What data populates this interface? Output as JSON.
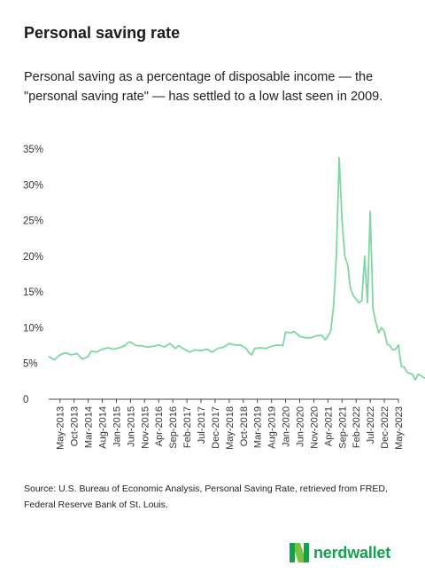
{
  "header": {
    "title": "Personal saving rate",
    "subtitle": "Personal saving as a percentage of disposable income — the \"personal saving rate\" — has settled to a low last seen in 2009."
  },
  "footer": {
    "source": "Source: U.S. Bureau of Economic Analysis, Personal Saving Rate, retrieved from FRED, Federal Reserve Bank of St. Louis.",
    "brand": "nerdwallet",
    "brand_color": "#14a14d"
  },
  "chart_data": {
    "type": "line",
    "title": "",
    "xlabel": "",
    "ylabel": "",
    "ylim": [
      0,
      35
    ],
    "y_ticks": [
      0,
      5,
      10,
      15,
      20,
      25,
      30,
      35
    ],
    "y_tick_labels": [
      "0",
      "5%",
      "10%",
      "15%",
      "20%",
      "25%",
      "30%",
      "35%"
    ],
    "x_tick_labels": [
      "May-2013",
      "Oct-2013",
      "Mar-2014",
      "Aug-2014",
      "Jan-2015",
      "Jun-2015",
      "Nov-2015",
      "Apr-2016",
      "Sep-2016",
      "Feb-2017",
      "Jul-2017",
      "Dec-2017",
      "May-2018",
      "Oct-2018",
      "Mar-2019",
      "Aug-2019",
      "Jan-2020",
      "Jun-2020",
      "Nov-2020",
      "Apr-2021",
      "Sep-2021",
      "Feb-2022",
      "Jul-2022",
      "Dec-2022",
      "May-2023"
    ],
    "start": "Jan-2013",
    "end": "May-2023",
    "line_color": "#7fd6a3",
    "grid": false,
    "legend": "none",
    "series": [
      {
        "values": [
          [
            0,
            6.0
          ],
          [
            2,
            5.5
          ],
          [
            4,
            6.2
          ],
          [
            6,
            6.5
          ],
          [
            8,
            6.2
          ],
          [
            10,
            6.4
          ],
          [
            12,
            5.6
          ],
          [
            14,
            6.0
          ],
          [
            15,
            6.7
          ],
          [
            17,
            6.6
          ],
          [
            19,
            7.0
          ],
          [
            21,
            7.2
          ],
          [
            23,
            7.0
          ],
          [
            25,
            7.2
          ],
          [
            27,
            7.5
          ],
          [
            28,
            7.9
          ],
          [
            29,
            8.0
          ],
          [
            31,
            7.5
          ],
          [
            33,
            7.5
          ],
          [
            35,
            7.3
          ],
          [
            37,
            7.4
          ],
          [
            39,
            7.6
          ],
          [
            41,
            7.3
          ],
          [
            43,
            7.8
          ],
          [
            45,
            7.1
          ],
          [
            46,
            7.5
          ],
          [
            48,
            7.0
          ],
          [
            50,
            6.6
          ],
          [
            52,
            6.9
          ],
          [
            54,
            6.8
          ],
          [
            56,
            7.0
          ],
          [
            58,
            6.6
          ],
          [
            60,
            7.1
          ],
          [
            62,
            7.3
          ],
          [
            64,
            7.8
          ],
          [
            66,
            7.6
          ],
          [
            68,
            7.6
          ],
          [
            70,
            7.1
          ],
          [
            71,
            6.5
          ],
          [
            72,
            6.2
          ],
          [
            73,
            7.1
          ],
          [
            75,
            7.2
          ],
          [
            77,
            7.1
          ],
          [
            79,
            7.4
          ],
          [
            81,
            7.6
          ],
          [
            83,
            7.5
          ],
          [
            84,
            9.4
          ],
          [
            86,
            9.3
          ],
          [
            87,
            9.5
          ],
          [
            89,
            8.8
          ],
          [
            91,
            8.6
          ],
          [
            93,
            8.6
          ],
          [
            95,
            8.9
          ],
          [
            97,
            8.9
          ],
          [
            98,
            8.3
          ],
          [
            99,
            8.8
          ],
          [
            100,
            9.5
          ],
          [
            101,
            13.0
          ],
          [
            102,
            20.0
          ],
          [
            103,
            33.8
          ],
          [
            104,
            25.0
          ],
          [
            105,
            20.0
          ],
          [
            106,
            18.8
          ],
          [
            107,
            15.5
          ],
          [
            108,
            14.5
          ],
          [
            109,
            14.0
          ],
          [
            110,
            13.5
          ],
          [
            111,
            13.8
          ],
          [
            112,
            20.0
          ],
          [
            113,
            13.5
          ],
          [
            114,
            26.3
          ],
          [
            115,
            12.6
          ],
          [
            116,
            10.8
          ],
          [
            117,
            9.3
          ],
          [
            118,
            10.0
          ],
          [
            119,
            9.5
          ],
          [
            120,
            7.7
          ],
          [
            121,
            7.5
          ],
          [
            122,
            6.9
          ],
          [
            123,
            7.0
          ],
          [
            124,
            7.6
          ],
          [
            125,
            4.6
          ],
          [
            126,
            4.5
          ],
          [
            127,
            3.8
          ],
          [
            128,
            3.6
          ],
          [
            129,
            3.5
          ],
          [
            130,
            2.7
          ],
          [
            131,
            3.5
          ],
          [
            132,
            3.3
          ],
          [
            133,
            3.0
          ],
          [
            134,
            3.0
          ],
          [
            135,
            3.2
          ],
          [
            136,
            3.8
          ],
          [
            137,
            3.9
          ],
          [
            138,
            4.2
          ],
          [
            139,
            4.5
          ],
          [
            140,
            4.3
          ],
          [
            141,
            4.5
          ]
        ]
      }
    ]
  }
}
